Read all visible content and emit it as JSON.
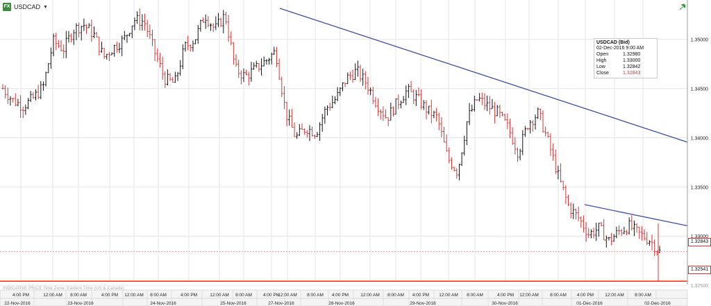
{
  "header": {
    "symbol": "USDCAD",
    "fx_label": "FX"
  },
  "info_box": {
    "title": "USDCAD (Bid)",
    "date": "02-Dec-2016 9:00 AM",
    "rows": [
      {
        "label": "Open",
        "value": "1.32980"
      },
      {
        "label": "High",
        "value": "1.33000"
      },
      {
        "label": "Low",
        "value": "1.32842"
      },
      {
        "label": "Close",
        "value": "1.32843"
      }
    ]
  },
  "footer_note": "INDICATIVE PRICE   Time Zone: Eastern Time (US & Canada)",
  "price_labels": {
    "current": "1.32843",
    "support": "1.32541"
  },
  "colors": {
    "up": "#111111",
    "down": "#e03030",
    "trendline": "#3b4fa3",
    "support": "#ff2a00",
    "current": "#ff8080",
    "grid": "#e6e6e6"
  },
  "chart_data": {
    "type": "candlestick",
    "title": "USDCAD",
    "ylim": [
      1.3255,
      1.354
    ],
    "y_ticks": [
      "1.35000",
      "1.34500",
      "1.34000",
      "1.33500",
      "1.33000",
      "1.32500"
    ],
    "time_ticks": [
      "4:00 PM",
      "12:00 AM",
      "8:00 AM",
      "4:00 PM",
      "12:00 AM",
      "8:00 AM",
      "4:00 PM",
      "12:00 AM",
      "8:00 AM",
      "4:00 PM",
      "12:00 AM",
      "8:00 AM",
      "4:00 PM",
      "12:00 AM",
      "8:00 AM",
      "4:00 PM",
      "12:00 AM",
      "8:00 AM",
      "4:00 PM",
      "12:00 AM",
      "8:00 AM",
      "4:00 PM",
      "12:00 AM",
      "8:00 AM"
    ],
    "date_labels": [
      "22-Nov-2016",
      "23-Nov-2016",
      "24-Nov-2016",
      "25-Nov-2016",
      "27-Nov-2016",
      "28-Nov-2016",
      "29-Nov-2016",
      "30-Nov-2016",
      "01-Dec-2016",
      "02-Dec-2016"
    ],
    "trend_points": [
      1.345,
      1.3438,
      1.3432,
      1.344,
      1.3452,
      1.3498,
      1.349,
      1.351,
      1.3515,
      1.3505,
      1.3482,
      1.3492,
      1.35,
      1.352,
      1.3518,
      1.3488,
      1.346,
      1.3455,
      1.3492,
      1.35,
      1.3525,
      1.351,
      1.3525,
      1.347,
      1.3462,
      1.347,
      1.3478,
      1.3488,
      1.3425,
      1.34,
      1.341,
      1.3405,
      1.343,
      1.344,
      1.346,
      1.3468,
      1.3455,
      1.3435,
      1.342,
      1.3435,
      1.3448,
      1.344,
      1.3428,
      1.342,
      1.338,
      1.3365,
      1.342,
      1.344,
      1.3432,
      1.3425,
      1.341,
      1.3385,
      1.3415,
      1.3425,
      1.3395,
      1.336,
      1.333,
      1.3318,
      1.3302,
      1.3308,
      1.3295,
      1.3305,
      1.331,
      1.3302,
      1.3296,
      1.3284
    ],
    "resistance_line": {
      "from": {
        "date": "27-Nov-2016 4:00 PM",
        "price": 1.35315
      },
      "to": {
        "date": "02-Dec-2016 1:00 PM",
        "price": 1.33955
      }
    },
    "secondary_resistance": {
      "from": {
        "date": "01-Dec-2016 8:00 AM",
        "price": 1.3332
      },
      "to": {
        "date": "02-Dec-2016 1:00 PM",
        "price": 1.33105
      }
    },
    "support_level": 1.32541,
    "last_price": 1.32843
  }
}
